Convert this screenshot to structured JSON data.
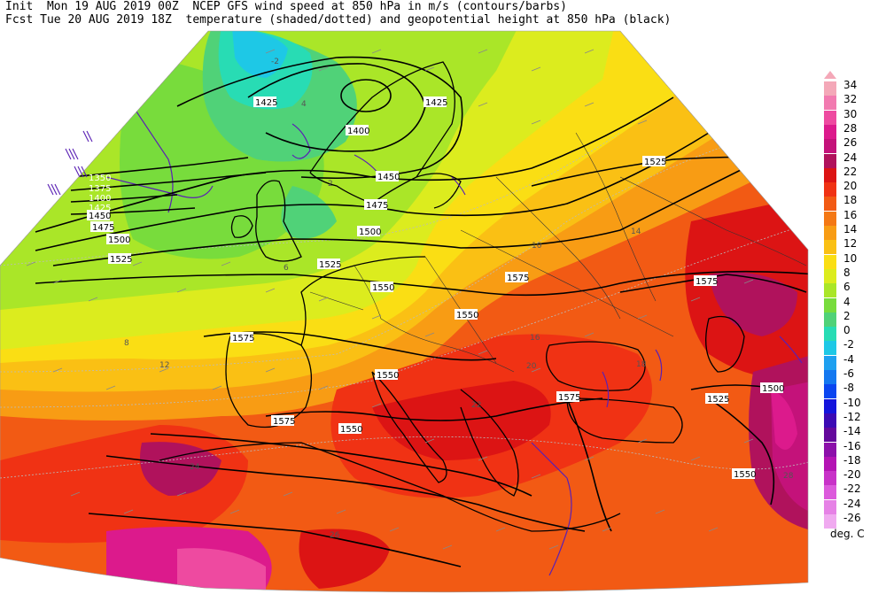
{
  "header": {
    "line1": "Init  Mon 19 AUG 2019 00Z  NCEP GFS wind speed at 850 hPa in m/s (contours/barbs)",
    "line2": "Fcst Tue 20 AUG 2019 18Z  temperature (shaded/dotted) and geopotential height at 850 hPa (black)"
  },
  "legend": {
    "units": "deg. C",
    "entries": [
      {
        "label": "34",
        "color": "#f4a8b8"
      },
      {
        "label": "32",
        "color": "#f27ab0"
      },
      {
        "label": "30",
        "color": "#ee4aa0"
      },
      {
        "label": "28",
        "color": "#dc1a8c"
      },
      {
        "label": "26",
        "color": "#c4127a"
      },
      {
        "label": "24",
        "color": "#b0125c"
      },
      {
        "label": "22",
        "color": "#dc1414"
      },
      {
        "label": "20",
        "color": "#f03214"
      },
      {
        "label": "18",
        "color": "#f25a14"
      },
      {
        "label": "16",
        "color": "#f47814"
      },
      {
        "label": "14",
        "color": "#f89c14"
      },
      {
        "label": "12",
        "color": "#fac014"
      },
      {
        "label": "10",
        "color": "#fade14"
      },
      {
        "label": "8",
        "color": "#dcec1e"
      },
      {
        "label": "6",
        "color": "#aae628"
      },
      {
        "label": "4",
        "color": "#78dc3c"
      },
      {
        "label": "2",
        "color": "#50d278"
      },
      {
        "label": "0",
        "color": "#28dcb4"
      },
      {
        "label": "-2",
        "color": "#1ec8e6"
      },
      {
        "label": "-4",
        "color": "#1ea0f0"
      },
      {
        "label": "-6",
        "color": "#1478f0"
      },
      {
        "label": "-8",
        "color": "#0a46f0"
      },
      {
        "label": "-10",
        "color": "#1414dc"
      },
      {
        "label": "-12",
        "color": "#3c0ab4"
      },
      {
        "label": "-14",
        "color": "#64089c"
      },
      {
        "label": "-16",
        "color": "#8c10aa"
      },
      {
        "label": "-18",
        "color": "#b414b4"
      },
      {
        "label": "-20",
        "color": "#c832c8"
      },
      {
        "label": "-22",
        "color": "#dc5adc"
      },
      {
        "label": "-24",
        "color": "#e682e6"
      },
      {
        "label": "-26",
        "color": "#f0aaf0"
      }
    ]
  },
  "map": {
    "height_labels": [
      "1425",
      "1400",
      "1425",
      "1450",
      "1475",
      "1500",
      "1525",
      "1550",
      "1575",
      "1525",
      "1550",
      "1575",
      "1550",
      "1575",
      "1550",
      "1575",
      "1500",
      "1525",
      "1550",
      "1575",
      "1350",
      "1375",
      "1400",
      "1425",
      "1450",
      "1475",
      "1500",
      "1525"
    ],
    "temp_labels": [
      "-2",
      "2",
      "4",
      "6",
      "8",
      "10",
      "12",
      "14",
      "16",
      "18",
      "20",
      "22",
      "24",
      "26",
      "28"
    ]
  }
}
